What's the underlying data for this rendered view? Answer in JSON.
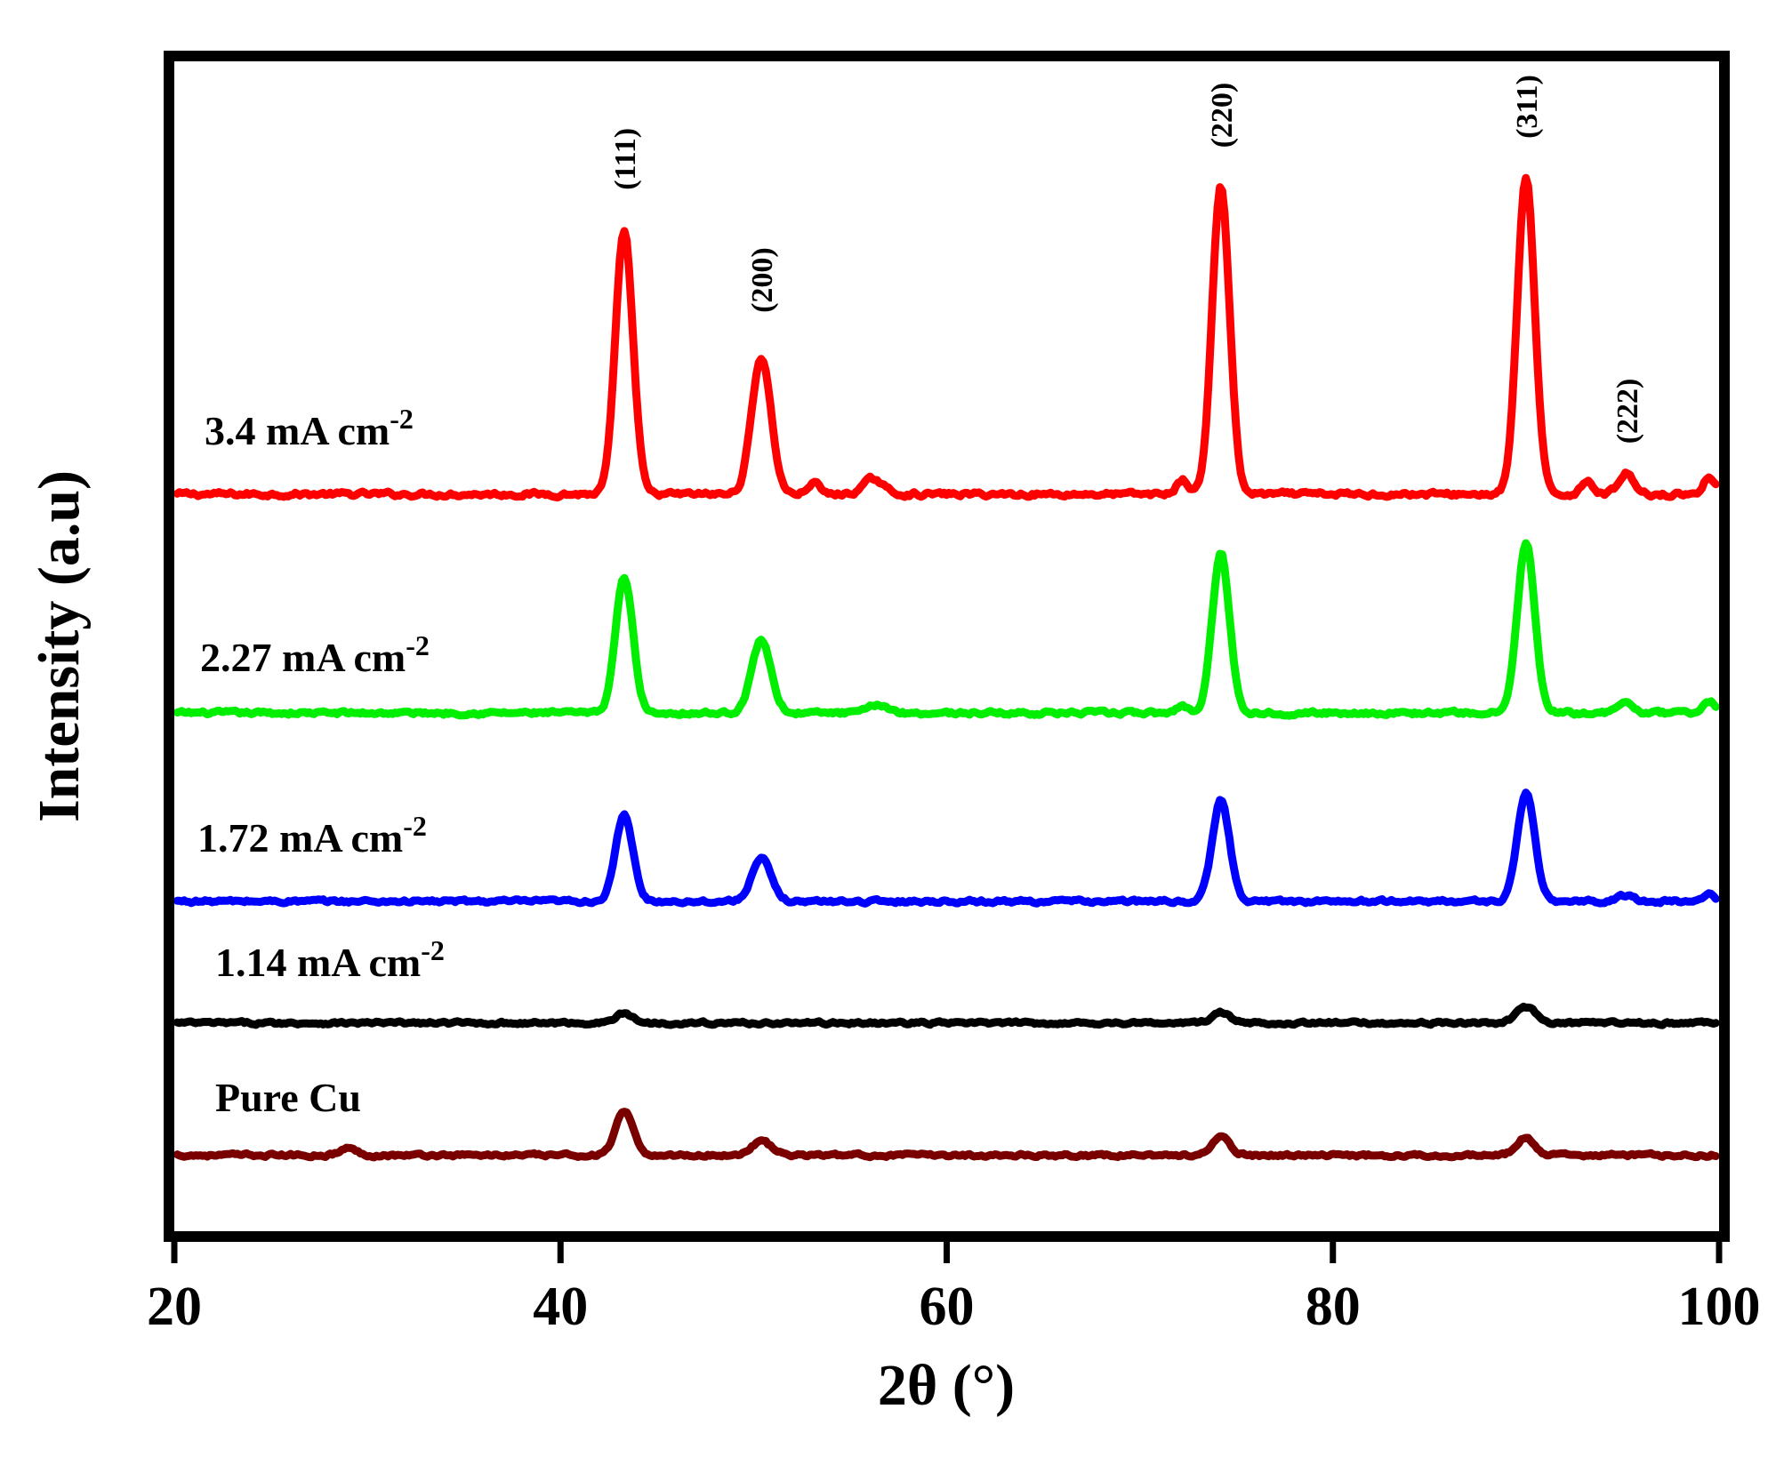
{
  "chart_data": {
    "type": "line",
    "title": "",
    "xlabel": "2θ (°)",
    "ylabel": "Intensity (a.u)",
    "xlim": [
      20,
      100
    ],
    "xticks": [
      "20",
      "40",
      "60",
      "80",
      "100"
    ],
    "ylim": [
      0,
      100
    ],
    "yticks_shown": false,
    "grid": false,
    "legend": "none",
    "series": [
      {
        "name": "3.4 mA cm-2",
        "label_text": "3.4 mA cm",
        "label_exp": "-2",
        "color": "#ff0000",
        "baseline": 63.0,
        "peaks": [
          {
            "x": 43.3,
            "h": 22.5,
            "w": 0.45
          },
          {
            "x": 50.4,
            "h": 11.7,
            "w": 0.5
          },
          {
            "x": 74.2,
            "h": 26.3,
            "w": 0.45
          },
          {
            "x": 90.0,
            "h": 27.0,
            "w": 0.45
          },
          {
            "x": 95.2,
            "h": 1.8,
            "w": 0.4
          },
          {
            "x": 93.2,
            "h": 1.2,
            "w": 0.3
          },
          {
            "x": 99.5,
            "h": 1.5,
            "w": 0.3
          },
          {
            "x": 72.2,
            "h": 1.2,
            "w": 0.3
          },
          {
            "x": 53.1,
            "h": 1.0,
            "w": 0.3
          },
          {
            "x": 56.2,
            "h": 1.3,
            "w": 0.5
          }
        ]
      },
      {
        "name": "2.27 mA cm-2",
        "label_text": "2.27 mA cm",
        "label_exp": "-2",
        "color": "#00ee00",
        "baseline": 44.3,
        "peaks": [
          {
            "x": 43.3,
            "h": 11.6,
            "w": 0.45
          },
          {
            "x": 50.4,
            "h": 6.2,
            "w": 0.5
          },
          {
            "x": 74.2,
            "h": 13.6,
            "w": 0.45
          },
          {
            "x": 90.0,
            "h": 14.5,
            "w": 0.45
          },
          {
            "x": 95.2,
            "h": 0.9,
            "w": 0.4
          },
          {
            "x": 99.5,
            "h": 1.0,
            "w": 0.3
          },
          {
            "x": 72.2,
            "h": 0.6,
            "w": 0.3
          },
          {
            "x": 56.5,
            "h": 0.7,
            "w": 0.5
          }
        ]
      },
      {
        "name": "1.72 mA cm-2",
        "label_text": "1.72 mA cm",
        "label_exp": "-2",
        "color": "#0000ff",
        "baseline": 28.2,
        "peaks": [
          {
            "x": 43.3,
            "h": 7.3,
            "w": 0.45
          },
          {
            "x": 50.4,
            "h": 3.6,
            "w": 0.5
          },
          {
            "x": 74.2,
            "h": 8.6,
            "w": 0.45
          },
          {
            "x": 90.0,
            "h": 9.2,
            "w": 0.45
          },
          {
            "x": 95.2,
            "h": 0.5,
            "w": 0.4
          },
          {
            "x": 99.5,
            "h": 0.6,
            "w": 0.3
          }
        ]
      },
      {
        "name": "1.14 mA cm-2",
        "label_text": "1.14 mA cm",
        "label_exp": "-2",
        "color": "#000000",
        "baseline": 17.8,
        "peaks": [
          {
            "x": 43.3,
            "h": 0.8,
            "w": 0.45
          },
          {
            "x": 74.2,
            "h": 0.9,
            "w": 0.45
          },
          {
            "x": 90.0,
            "h": 1.3,
            "w": 0.5
          }
        ]
      },
      {
        "name": "Pure Cu",
        "label_text": "Pure Cu",
        "label_exp": "",
        "color": "#7a0000",
        "baseline": 6.5,
        "peaks": [
          {
            "x": 43.3,
            "h": 3.7,
            "w": 0.45
          },
          {
            "x": 50.4,
            "h": 1.2,
            "w": 0.5
          },
          {
            "x": 74.2,
            "h": 1.5,
            "w": 0.45
          },
          {
            "x": 90.0,
            "h": 1.5,
            "w": 0.45
          },
          {
            "x": 29.0,
            "h": 0.6,
            "w": 0.4
          }
        ]
      }
    ],
    "peak_labels": [
      {
        "text": "(111)",
        "x": 43.3,
        "y": 89.0
      },
      {
        "text": "(200)",
        "x": 50.4,
        "y": 78.5
      },
      {
        "text": "(220)",
        "x": 74.2,
        "y": 92.6
      },
      {
        "text": "(311)",
        "x": 90.0,
        "y": 93.4
      },
      {
        "text": "(222)",
        "x": 95.2,
        "y": 67.3
      }
    ]
  }
}
